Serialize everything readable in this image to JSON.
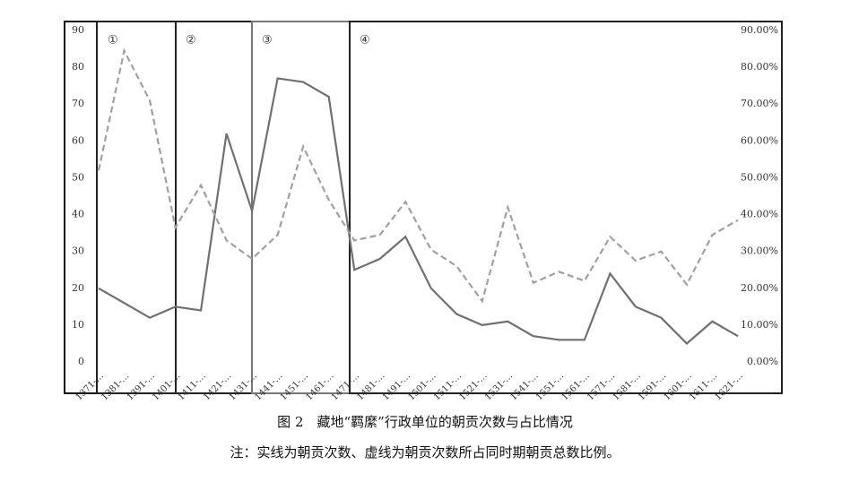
{
  "chart_data": {
    "type": "line",
    "title": "图 2　藏地“羁縻”行政单位的朝贡次数与占比情况",
    "subtitle": "注：实线为朝贡次数、虚线为朝贡次数所占同时期朝贡总数比例。",
    "periods": [
      "①",
      "②",
      "③",
      "④"
    ],
    "categories": [
      "1371-…",
      "1381-…",
      "1391-…",
      "1401-…",
      "1411-…",
      "1421-…",
      "1431-…",
      "1441-…",
      "1451-…",
      "1461-…",
      "1471-…",
      "1481-…",
      "1491-…",
      "1501-…",
      "1511-…",
      "1521-…",
      "1531-…",
      "1541-…",
      "1551-…",
      "1561-…",
      "1571-…",
      "1581-…",
      "1591-…",
      "1601-…",
      "1611-…",
      "1621-…"
    ],
    "series": [
      {
        "color": "#707070",
        "dashed": false,
        "values": [
          20,
          16,
          12,
          15,
          14,
          62,
          41,
          77,
          76,
          72,
          25,
          28,
          34,
          20,
          13,
          10,
          11,
          7,
          6,
          6,
          24,
          15,
          12,
          5,
          11,
          7
        ]
      },
      {
        "color": "#a0a0a0",
        "dashed": true,
        "axis": "y2",
        "values": [
          52,
          84.5,
          71,
          36.5,
          48,
          33,
          28,
          34.5,
          58.5,
          44,
          33,
          34.5,
          43.5,
          30.5,
          26,
          16.5,
          42,
          21.5,
          24.5,
          22,
          34,
          27.5,
          30,
          21,
          34.5,
          38.5
        ]
      }
    ],
    "ylim": [
      0,
      90
    ],
    "yticks": [
      0,
      10,
      20,
      30,
      40,
      50,
      60,
      70,
      80,
      90
    ],
    "y2lim": [
      0,
      90
    ],
    "y2ticks": [
      {
        "value": 0,
        "label": "0.00%"
      },
      {
        "value": 10,
        "label": "10.00%"
      },
      {
        "value": 20,
        "label": "20.00%"
      },
      {
        "value": 30,
        "label": "30.00%"
      },
      {
        "value": 40,
        "label": "40.00%"
      },
      {
        "value": 50,
        "label": "50.00%"
      },
      {
        "value": 60,
        "label": "60.00%"
      },
      {
        "value": 70,
        "label": "70.00%"
      },
      {
        "value": 80,
        "label": "80.00%"
      },
      {
        "value": 90,
        "label": "90.00%"
      }
    ]
  }
}
